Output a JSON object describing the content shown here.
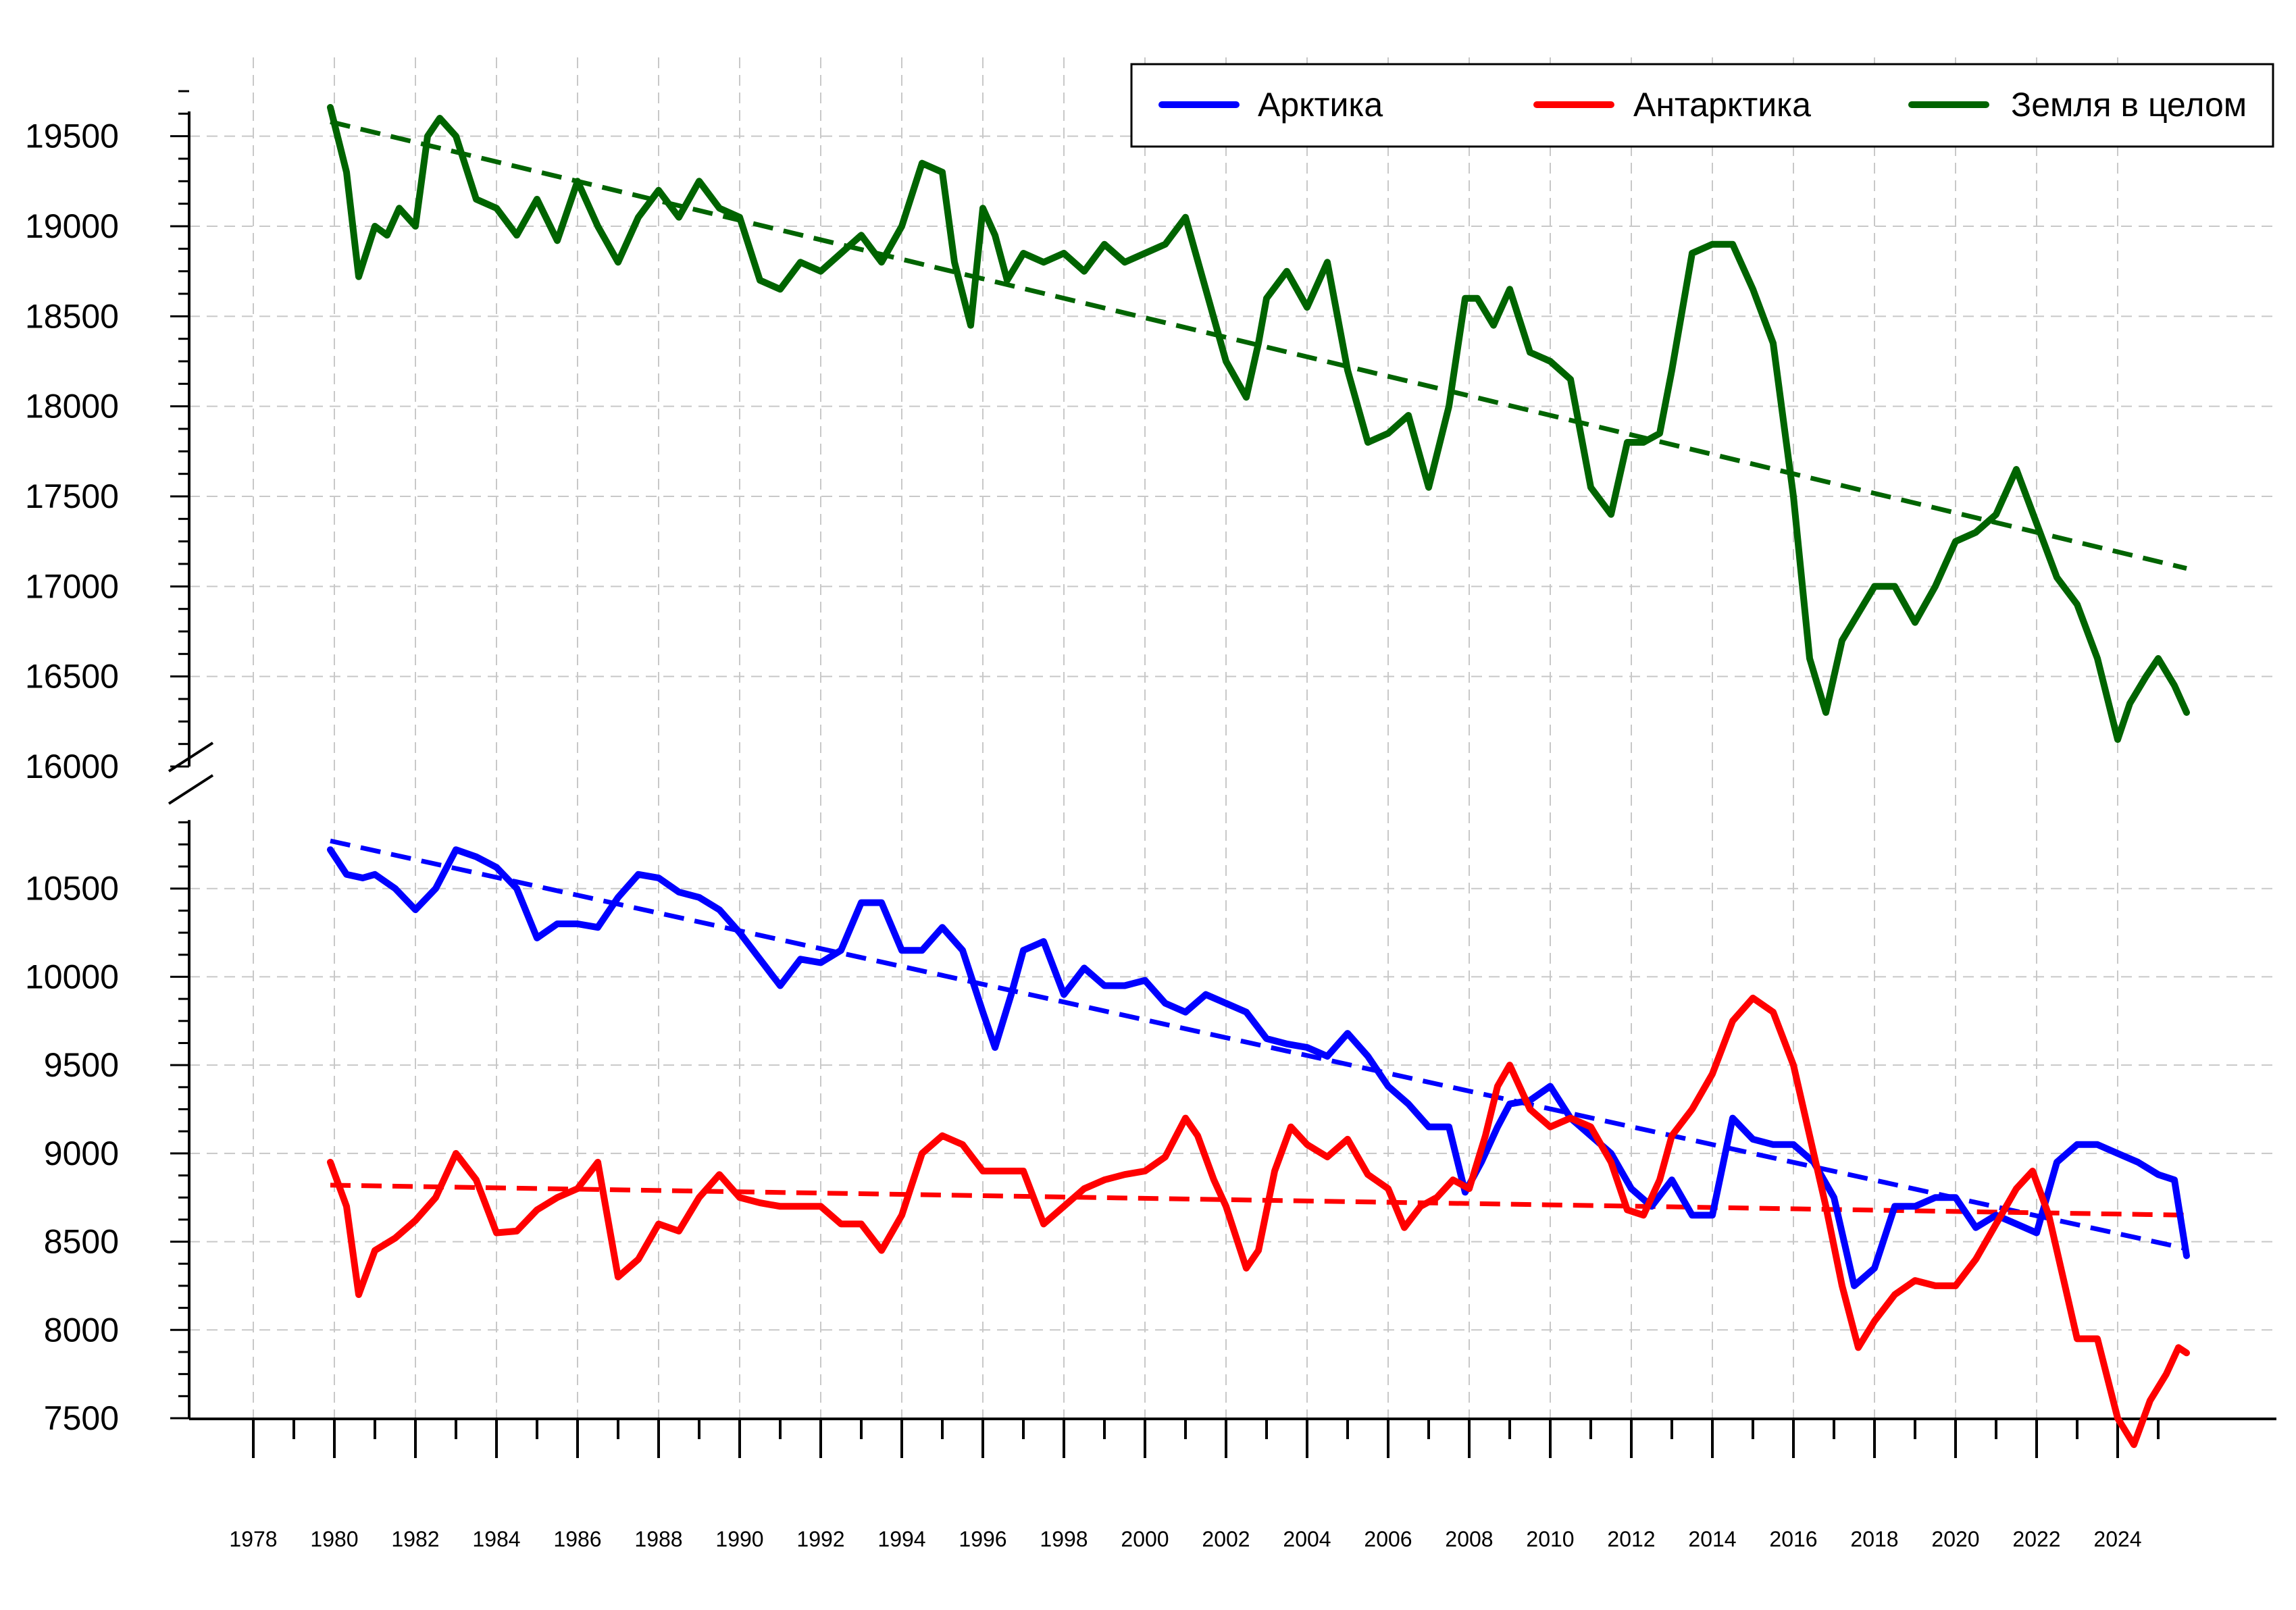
{
  "chart_data": {
    "type": "line",
    "title": "",
    "xlabel": "",
    "ylabel": "",
    "grid": true,
    "legend_position": "top-right",
    "broken_y_axis": true,
    "x_range": [
      1977.5,
      2026.0
    ],
    "x_ticks": [
      "1978",
      "1980",
      "1982",
      "1984",
      "1986",
      "1988",
      "1990",
      "1992",
      "1994",
      "1996",
      "1998",
      "2000",
      "2002",
      "2004",
      "2006",
      "2008",
      "2010",
      "2012",
      "2014",
      "2016",
      "2018",
      "2020",
      "2022",
      "2024"
    ],
    "upper_panel": {
      "ylim": [
        16000,
        19900
      ],
      "y_ticks": [
        "19500",
        "19000",
        "18500",
        "18000",
        "17500",
        "17000",
        "16500",
        "16000"
      ]
    },
    "lower_panel": {
      "ylim": [
        7500,
        11000
      ],
      "y_ticks": [
        "10500",
        "10000",
        "9500",
        "9000",
        "8500",
        "8000",
        "7500"
      ]
    },
    "colors": {
      "arctic": "#0000ff",
      "antarctic": "#ff0000",
      "global": "#006400"
    },
    "legend": [
      {
        "key": "arctic",
        "label": "Арктика"
      },
      {
        "key": "antarctic",
        "label": "Антарктика"
      },
      {
        "key": "global",
        "label": "Земля в целом"
      }
    ],
    "series": [
      {
        "name": "Земля в целом",
        "key": "global",
        "panel": "upper",
        "x": [
          1979.9,
          1980.3,
          1980.6,
          1981.0,
          1981.3,
          1981.6,
          1982.0,
          1982.3,
          1982.6,
          1983.0,
          1983.5,
          1984.0,
          1984.5,
          1985.0,
          1985.5,
          1986.0,
          1986.5,
          1987.0,
          1987.5,
          1988.0,
          1988.5,
          1989.0,
          1989.5,
          1990.0,
          1990.5,
          1991.0,
          1991.5,
          1992.0,
          1992.5,
          1993.0,
          1993.5,
          1994.0,
          1994.5,
          1995.0,
          1995.3,
          1995.7,
          1996.0,
          1996.3,
          1996.6,
          1997.0,
          1997.5,
          1998.0,
          1998.5,
          1999.0,
          1999.5,
          2000.0,
          2000.5,
          2001.0,
          2001.5,
          2002.0,
          2002.5,
          2002.8,
          2003.0,
          2003.5,
          2004.0,
          2004.5,
          2005.0,
          2005.5,
          2006.0,
          2006.5,
          2007.0,
          2007.5,
          2007.9,
          2008.2,
          2008.6,
          2009.0,
          2009.5,
          2010.0,
          2010.5,
          2011.0,
          2011.5,
          2011.9,
          2012.3,
          2012.7,
          2013.0,
          2013.5,
          2014.0,
          2014.5,
          2015.0,
          2015.5,
          2016.0,
          2016.4,
          2016.8,
          2017.2,
          2017.6,
          2018.0,
          2018.5,
          2019.0,
          2019.5,
          2020.0,
          2020.5,
          2021.0,
          2021.5,
          2022.0,
          2022.5,
          2023.0,
          2023.5,
          2024.0,
          2024.3,
          2024.7,
          2025.0,
          2025.4,
          2025.7
        ],
        "y": [
          19660,
          19300,
          18720,
          19000,
          18950,
          19100,
          19000,
          19500,
          19600,
          19500,
          19150,
          19100,
          18950,
          19150,
          18920,
          19250,
          19000,
          18800,
          19050,
          19200,
          19050,
          19250,
          19100,
          19050,
          18700,
          18650,
          18800,
          18750,
          18850,
          18950,
          18800,
          19000,
          19350,
          19300,
          18800,
          18450,
          19100,
          18950,
          18700,
          18850,
          18800,
          18850,
          18750,
          18900,
          18800,
          18850,
          18900,
          19050,
          18650,
          18250,
          18050,
          18350,
          18600,
          18750,
          18550,
          18800,
          18200,
          17800,
          17850,
          17950,
          17550,
          18000,
          18600,
          18600,
          18450,
          18650,
          18300,
          18250,
          18150,
          17550,
          17400,
          17800,
          17800,
          17850,
          18200,
          18850,
          18900,
          18900,
          18650,
          18350,
          17500,
          16600,
          16300,
          16700,
          16850,
          17000,
          17000,
          16800,
          17000,
          17250,
          17300,
          17400,
          17650,
          17350,
          17050,
          16900,
          16600,
          16150,
          16350,
          16500,
          16600,
          16450,
          16300
        ]
      },
      {
        "name": "Арктика",
        "key": "arctic",
        "panel": "lower",
        "x": [
          1979.9,
          1980.3,
          1980.7,
          1981.0,
          1981.5,
          1982.0,
          1982.5,
          1983.0,
          1983.5,
          1984.0,
          1984.5,
          1985.0,
          1985.5,
          1986.0,
          1986.5,
          1987.0,
          1987.5,
          1988.0,
          1988.5,
          1989.0,
          1989.5,
          1990.0,
          1990.5,
          1991.0,
          1991.5,
          1992.0,
          1992.5,
          1993.0,
          1993.5,
          1994.0,
          1994.5,
          1995.0,
          1995.5,
          1996.0,
          1996.3,
          1996.7,
          1997.0,
          1997.5,
          1998.0,
          1998.5,
          1999.0,
          1999.5,
          2000.0,
          2000.5,
          2001.0,
          2001.5,
          2002.0,
          2002.5,
          2003.0,
          2003.5,
          2004.0,
          2004.5,
          2005.0,
          2005.5,
          2006.0,
          2006.5,
          2007.0,
          2007.5,
          2007.9,
          2008.3,
          2008.7,
          2009.0,
          2009.5,
          2010.0,
          2010.5,
          2011.0,
          2011.5,
          2012.0,
          2012.5,
          2013.0,
          2013.5,
          2014.0,
          2014.5,
          2015.0,
          2015.5,
          2016.0,
          2016.5,
          2017.0,
          2017.5,
          2018.0,
          2018.5,
          2019.0,
          2019.5,
          2020.0,
          2020.5,
          2021.0,
          2021.5,
          2022.0,
          2022.5,
          2023.0,
          2023.5,
          2024.0,
          2024.5,
          2025.0,
          2025.4,
          2025.7
        ],
        "y": [
          10720,
          10580,
          10560,
          10580,
          10500,
          10380,
          10500,
          10720,
          10680,
          10620,
          10500,
          10220,
          10300,
          10300,
          10280,
          10450,
          10580,
          10560,
          10480,
          10450,
          10380,
          10250,
          10100,
          9950,
          10100,
          10080,
          10150,
          10420,
          10420,
          10150,
          10150,
          10280,
          10150,
          9800,
          9600,
          9900,
          10150,
          10200,
          9900,
          10050,
          9950,
          9950,
          9980,
          9850,
          9800,
          9900,
          9850,
          9800,
          9650,
          9620,
          9600,
          9550,
          9680,
          9550,
          9380,
          9280,
          9150,
          9150,
          8780,
          8950,
          9150,
          9280,
          9300,
          9380,
          9200,
          9100,
          9000,
          8800,
          8700,
          8850,
          8650,
          8650,
          9200,
          9080,
          9050,
          9050,
          8950,
          8750,
          8250,
          8350,
          8700,
          8700,
          8750,
          8750,
          8580,
          8650,
          8600,
          8550,
          8950,
          9050,
          9050,
          9000,
          8950,
          8880,
          8850,
          8420
        ]
      },
      {
        "name": "Антарктика",
        "key": "antarctic",
        "panel": "lower",
        "x": [
          1979.9,
          1980.3,
          1980.6,
          1981.0,
          1981.5,
          1982.0,
          1982.5,
          1983.0,
          1983.5,
          1984.0,
          1984.5,
          1985.0,
          1985.5,
          1986.0,
          1986.5,
          1987.0,
          1987.5,
          1988.0,
          1988.5,
          1989.0,
          1989.5,
          1990.0,
          1990.5,
          1991.0,
          1991.5,
          1992.0,
          1992.5,
          1993.0,
          1993.5,
          1994.0,
          1994.5,
          1995.0,
          1995.5,
          1996.0,
          1996.5,
          1997.0,
          1997.5,
          1998.0,
          1998.5,
          1999.0,
          1999.5,
          2000.0,
          2000.5,
          2001.0,
          2001.3,
          2001.7,
          2002.0,
          2002.5,
          2002.8,
          2003.2,
          2003.6,
          2004.0,
          2004.5,
          2005.0,
          2005.5,
          2006.0,
          2006.4,
          2006.8,
          2007.2,
          2007.6,
          2008.0,
          2008.4,
          2008.7,
          2009.0,
          2009.5,
          2010.0,
          2010.5,
          2011.0,
          2011.5,
          2011.9,
          2012.3,
          2012.7,
          2013.0,
          2013.5,
          2014.0,
          2014.5,
          2015.0,
          2015.5,
          2016.0,
          2016.4,
          2016.8,
          2017.2,
          2017.6,
          2018.0,
          2018.5,
          2019.0,
          2019.5,
          2020.0,
          2020.5,
          2021.0,
          2021.5,
          2021.9,
          2022.3,
          2022.7,
          2023.0,
          2023.5,
          2024.0,
          2024.4,
          2024.8,
          2025.2,
          2025.5,
          2025.7
        ],
        "y": [
          8950,
          8700,
          8200,
          8450,
          8520,
          8620,
          8750,
          9000,
          8850,
          8550,
          8560,
          8680,
          8750,
          8800,
          8950,
          8300,
          8400,
          8600,
          8560,
          8750,
          8880,
          8750,
          8720,
          8700,
          8700,
          8700,
          8600,
          8600,
          8450,
          8650,
          9000,
          9100,
          9050,
          8900,
          8900,
          8900,
          8600,
          8700,
          8800,
          8850,
          8880,
          8900,
          8980,
          9200,
          9100,
          8850,
          8700,
          8350,
          8450,
          8900,
          9150,
          9050,
          8980,
          9080,
          8880,
          8800,
          8580,
          8700,
          8750,
          8850,
          8800,
          9100,
          9380,
          9500,
          9250,
          9150,
          9200,
          9150,
          8950,
          8680,
          8650,
          8850,
          9100,
          9250,
          9450,
          9750,
          9880,
          9800,
          9500,
          9100,
          8700,
          8250,
          7900,
          8050,
          8200,
          8280,
          8250,
          8250,
          8400,
          8600,
          8800,
          8900,
          8650,
          8250,
          7950,
          7950,
          7500,
          7350,
          7600,
          7750,
          7900,
          7870
        ]
      }
    ],
    "trends": [
      {
        "key": "global",
        "panel": "upper",
        "x": [
          1979.9,
          2025.7
        ],
        "y": [
          19580,
          17100
        ]
      },
      {
        "key": "arctic",
        "panel": "lower",
        "x": [
          1979.9,
          2025.7
        ],
        "y": [
          10770,
          8460
        ]
      },
      {
        "key": "antarctic",
        "panel": "lower",
        "x": [
          1979.9,
          2025.7
        ],
        "y": [
          8820,
          8650
        ]
      }
    ]
  }
}
